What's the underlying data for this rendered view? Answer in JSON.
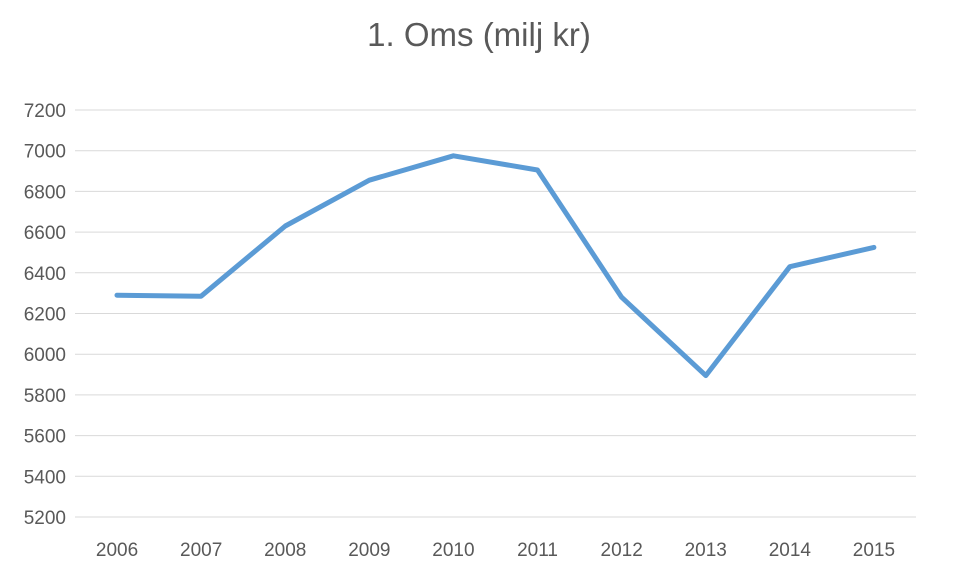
{
  "chart_data": {
    "type": "line",
    "title": "1. Oms (milj kr)",
    "xlabel": "",
    "ylabel": "",
    "categories": [
      "2006",
      "2007",
      "2008",
      "2009",
      "2010",
      "2011",
      "2012",
      "2013",
      "2014",
      "2015"
    ],
    "series": [
      {
        "values": [
          6290,
          6285,
          6630,
          6855,
          6975,
          6905,
          6280,
          5895,
          6430,
          6525
        ],
        "color": "#5b9bd5"
      }
    ],
    "ylim": [
      5200,
      7200
    ],
    "yticks": [
      7200,
      7000,
      6800,
      6600,
      6400,
      6200,
      6000,
      5800,
      5600,
      5400,
      5200
    ],
    "grid": true,
    "legend": "none"
  }
}
